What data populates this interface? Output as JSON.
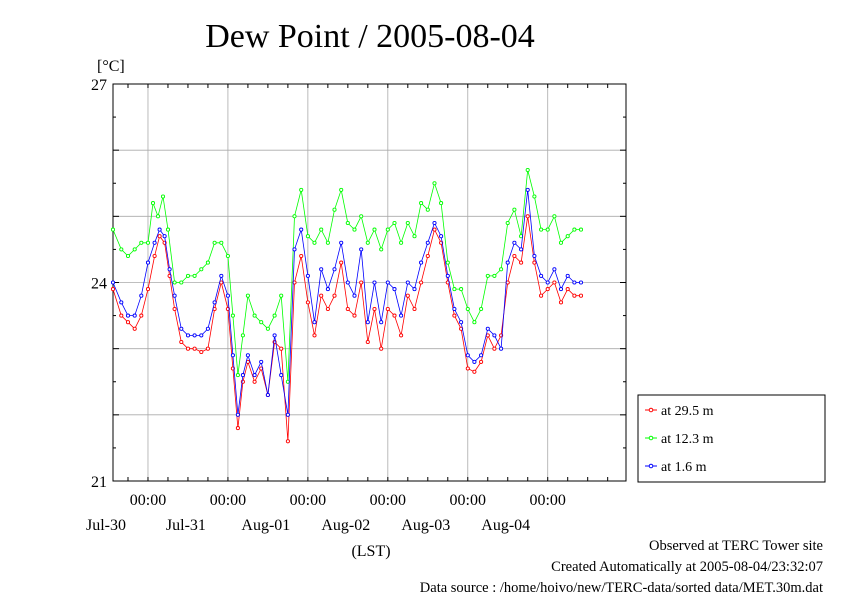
{
  "chart_data": {
    "type": "line",
    "title": "Dew Point / 2005-08-04",
    "ylabel": "[°C]",
    "xlabel": "(LST)",
    "ylim": [
      21,
      27
    ],
    "xlim": [
      "2005-07-29T13:30",
      "2005-08-04T23:30"
    ],
    "y_ticks": [
      {
        "value": 21,
        "label": "21"
      },
      {
        "value": 24,
        "label": "24"
      },
      {
        "value": 27,
        "label": "27"
      }
    ],
    "x_ticks": [
      {
        "time": "2005-07-30T00:00",
        "time_label": "00:00",
        "date_label": "Jul-30"
      },
      {
        "time": "2005-07-31T00:00",
        "time_label": "00:00",
        "date_label": "Jul-31"
      },
      {
        "time": "2005-08-01T00:00",
        "time_label": "00:00",
        "date_label": "Aug-01"
      },
      {
        "time": "2005-08-02T00:00",
        "time_label": "00:00",
        "date_label": "Aug-02"
      },
      {
        "time": "2005-08-03T00:00",
        "time_label": "00:00",
        "date_label": "Aug-03"
      },
      {
        "time": "2005-08-04T00:00",
        "time_label": "00:00",
        "date_label": "Aug-04"
      }
    ],
    "grid": true,
    "legend_position": "right",
    "series": [
      {
        "name": "at 29.5 m",
        "color": "#ff0000",
        "points": [
          [
            "2005-07-29T13:30",
            23.9
          ],
          [
            "2005-07-29T16:00",
            23.5
          ],
          [
            "2005-07-29T18:00",
            23.4
          ],
          [
            "2005-07-29T20:00",
            23.3
          ],
          [
            "2005-07-29T22:00",
            23.5
          ],
          [
            "2005-07-30T00:00",
            23.9
          ],
          [
            "2005-07-30T02:00",
            24.4
          ],
          [
            "2005-07-30T03:30",
            24.7
          ],
          [
            "2005-07-30T05:00",
            24.6
          ],
          [
            "2005-07-30T06:30",
            24.1
          ],
          [
            "2005-07-30T08:00",
            23.6
          ],
          [
            "2005-07-30T10:00",
            23.1
          ],
          [
            "2005-07-30T12:00",
            23.0
          ],
          [
            "2005-07-30T14:00",
            23.0
          ],
          [
            "2005-07-30T16:00",
            22.95
          ],
          [
            "2005-07-30T18:00",
            23.0
          ],
          [
            "2005-07-30T20:00",
            23.6
          ],
          [
            "2005-07-30T22:00",
            24.0
          ],
          [
            "2005-07-31T00:00",
            23.6
          ],
          [
            "2005-07-31T01:30",
            22.7
          ],
          [
            "2005-07-31T03:00",
            21.8
          ],
          [
            "2005-07-31T04:30",
            22.5
          ],
          [
            "2005-07-31T06:00",
            22.8
          ],
          [
            "2005-07-31T08:00",
            22.5
          ],
          [
            "2005-07-31T10:00",
            22.7
          ],
          [
            "2005-07-31T12:00",
            22.3
          ],
          [
            "2005-07-31T14:00",
            23.1
          ],
          [
            "2005-07-31T16:00",
            23.0
          ],
          [
            "2005-07-31T18:00",
            21.6
          ],
          [
            "2005-07-31T20:00",
            24.0
          ],
          [
            "2005-07-31T22:00",
            24.4
          ],
          [
            "2005-08-01T00:00",
            23.7
          ],
          [
            "2005-08-01T02:00",
            23.2
          ],
          [
            "2005-08-01T04:00",
            23.8
          ],
          [
            "2005-08-01T06:00",
            23.6
          ],
          [
            "2005-08-01T08:00",
            23.8
          ],
          [
            "2005-08-01T10:00",
            24.3
          ],
          [
            "2005-08-01T12:00",
            23.6
          ],
          [
            "2005-08-01T14:00",
            23.5
          ],
          [
            "2005-08-01T16:00",
            24.0
          ],
          [
            "2005-08-01T18:00",
            23.1
          ],
          [
            "2005-08-01T20:00",
            23.6
          ],
          [
            "2005-08-01T22:00",
            23.0
          ],
          [
            "2005-08-02T00:00",
            23.6
          ],
          [
            "2005-08-02T02:00",
            23.5
          ],
          [
            "2005-08-02T04:00",
            23.2
          ],
          [
            "2005-08-02T06:00",
            23.8
          ],
          [
            "2005-08-02T08:00",
            23.6
          ],
          [
            "2005-08-02T10:00",
            24.0
          ],
          [
            "2005-08-02T12:00",
            24.4
          ],
          [
            "2005-08-02T14:00",
            24.8
          ],
          [
            "2005-08-02T16:00",
            24.6
          ],
          [
            "2005-08-02T18:00",
            24.0
          ],
          [
            "2005-08-02T20:00",
            23.5
          ],
          [
            "2005-08-02T22:00",
            23.3
          ],
          [
            "2005-08-03T00:00",
            22.7
          ],
          [
            "2005-08-03T02:00",
            22.65
          ],
          [
            "2005-08-03T04:00",
            22.8
          ],
          [
            "2005-08-03T06:00",
            23.2
          ],
          [
            "2005-08-03T08:00",
            23.0
          ],
          [
            "2005-08-03T10:00",
            23.2
          ],
          [
            "2005-08-03T12:00",
            24.0
          ],
          [
            "2005-08-03T14:00",
            24.4
          ],
          [
            "2005-08-03T16:00",
            24.3
          ],
          [
            "2005-08-03T18:00",
            25.0
          ],
          [
            "2005-08-03T20:00",
            24.3
          ],
          [
            "2005-08-03T22:00",
            23.8
          ],
          [
            "2005-08-04T00:00",
            23.9
          ],
          [
            "2005-08-04T02:00",
            24.0
          ],
          [
            "2005-08-04T04:00",
            23.7
          ],
          [
            "2005-08-04T06:00",
            23.9
          ],
          [
            "2005-08-04T08:00",
            23.8
          ],
          [
            "2005-08-04T10:00",
            23.8
          ]
        ]
      },
      {
        "name": "at 12.3 m",
        "color": "#00ff00",
        "points": [
          [
            "2005-07-29T13:30",
            24.8
          ],
          [
            "2005-07-29T16:00",
            24.5
          ],
          [
            "2005-07-29T18:00",
            24.4
          ],
          [
            "2005-07-29T20:00",
            24.5
          ],
          [
            "2005-07-29T22:00",
            24.6
          ],
          [
            "2005-07-30T00:00",
            24.6
          ],
          [
            "2005-07-30T01:30",
            25.2
          ],
          [
            "2005-07-30T03:00",
            25.0
          ],
          [
            "2005-07-30T04:30",
            25.3
          ],
          [
            "2005-07-30T06:00",
            24.8
          ],
          [
            "2005-07-30T08:00",
            24.0
          ],
          [
            "2005-07-30T10:00",
            24.0
          ],
          [
            "2005-07-30T12:00",
            24.1
          ],
          [
            "2005-07-30T14:00",
            24.1
          ],
          [
            "2005-07-30T16:00",
            24.2
          ],
          [
            "2005-07-30T18:00",
            24.3
          ],
          [
            "2005-07-30T20:00",
            24.6
          ],
          [
            "2005-07-30T22:00",
            24.6
          ],
          [
            "2005-07-31T00:00",
            24.4
          ],
          [
            "2005-07-31T01:30",
            23.5
          ],
          [
            "2005-07-31T03:00",
            22.6
          ],
          [
            "2005-07-31T04:30",
            23.2
          ],
          [
            "2005-07-31T06:00",
            23.8
          ],
          [
            "2005-07-31T08:00",
            23.5
          ],
          [
            "2005-07-31T10:00",
            23.4
          ],
          [
            "2005-07-31T12:00",
            23.3
          ],
          [
            "2005-07-31T14:00",
            23.5
          ],
          [
            "2005-07-31T16:00",
            23.8
          ],
          [
            "2005-07-31T18:00",
            22.5
          ],
          [
            "2005-07-31T20:00",
            25.0
          ],
          [
            "2005-07-31T22:00",
            25.4
          ],
          [
            "2005-08-01T00:00",
            24.7
          ],
          [
            "2005-08-01T02:00",
            24.6
          ],
          [
            "2005-08-01T04:00",
            24.8
          ],
          [
            "2005-08-01T06:00",
            24.6
          ],
          [
            "2005-08-01T08:00",
            25.1
          ],
          [
            "2005-08-01T10:00",
            25.4
          ],
          [
            "2005-08-01T12:00",
            24.9
          ],
          [
            "2005-08-01T14:00",
            24.8
          ],
          [
            "2005-08-01T16:00",
            25.0
          ],
          [
            "2005-08-01T18:00",
            24.6
          ],
          [
            "2005-08-01T20:00",
            24.8
          ],
          [
            "2005-08-01T22:00",
            24.5
          ],
          [
            "2005-08-02T00:00",
            24.8
          ],
          [
            "2005-08-02T02:00",
            24.9
          ],
          [
            "2005-08-02T04:00",
            24.6
          ],
          [
            "2005-08-02T06:00",
            24.9
          ],
          [
            "2005-08-02T08:00",
            24.7
          ],
          [
            "2005-08-02T10:00",
            25.2
          ],
          [
            "2005-08-02T12:00",
            25.1
          ],
          [
            "2005-08-02T14:00",
            25.5
          ],
          [
            "2005-08-02T16:00",
            25.2
          ],
          [
            "2005-08-02T18:00",
            24.3
          ],
          [
            "2005-08-02T20:00",
            23.9
          ],
          [
            "2005-08-02T22:00",
            23.9
          ],
          [
            "2005-08-03T00:00",
            23.6
          ],
          [
            "2005-08-03T02:00",
            23.4
          ],
          [
            "2005-08-03T04:00",
            23.6
          ],
          [
            "2005-08-03T06:00",
            24.1
          ],
          [
            "2005-08-03T08:00",
            24.1
          ],
          [
            "2005-08-03T10:00",
            24.2
          ],
          [
            "2005-08-03T12:00",
            24.9
          ],
          [
            "2005-08-03T14:00",
            25.1
          ],
          [
            "2005-08-03T16:00",
            24.7
          ],
          [
            "2005-08-03T18:00",
            25.7
          ],
          [
            "2005-08-03T20:00",
            25.3
          ],
          [
            "2005-08-03T22:00",
            24.8
          ],
          [
            "2005-08-04T00:00",
            24.8
          ],
          [
            "2005-08-04T02:00",
            25.0
          ],
          [
            "2005-08-04T04:00",
            24.6
          ],
          [
            "2005-08-04T06:00",
            24.7
          ],
          [
            "2005-08-04T08:00",
            24.8
          ],
          [
            "2005-08-04T10:00",
            24.8
          ]
        ]
      },
      {
        "name": "at 1.6 m",
        "color": "#0000ff",
        "points": [
          [
            "2005-07-29T13:30",
            24.0
          ],
          [
            "2005-07-29T16:00",
            23.7
          ],
          [
            "2005-07-29T18:00",
            23.5
          ],
          [
            "2005-07-29T20:00",
            23.5
          ],
          [
            "2005-07-29T22:00",
            23.8
          ],
          [
            "2005-07-30T00:00",
            24.3
          ],
          [
            "2005-07-30T02:00",
            24.6
          ],
          [
            "2005-07-30T03:30",
            24.8
          ],
          [
            "2005-07-30T05:00",
            24.7
          ],
          [
            "2005-07-30T06:30",
            24.2
          ],
          [
            "2005-07-30T08:00",
            23.8
          ],
          [
            "2005-07-30T10:00",
            23.3
          ],
          [
            "2005-07-30T12:00",
            23.2
          ],
          [
            "2005-07-30T14:00",
            23.2
          ],
          [
            "2005-07-30T16:00",
            23.2
          ],
          [
            "2005-07-30T18:00",
            23.3
          ],
          [
            "2005-07-30T20:00",
            23.7
          ],
          [
            "2005-07-30T22:00",
            24.1
          ],
          [
            "2005-07-31T00:00",
            23.8
          ],
          [
            "2005-07-31T01:30",
            22.9
          ],
          [
            "2005-07-31T03:00",
            22.0
          ],
          [
            "2005-07-31T04:30",
            22.6
          ],
          [
            "2005-07-31T06:00",
            22.9
          ],
          [
            "2005-07-31T08:00",
            22.6
          ],
          [
            "2005-07-31T10:00",
            22.8
          ],
          [
            "2005-07-31T12:00",
            22.3
          ],
          [
            "2005-07-31T14:00",
            23.2
          ],
          [
            "2005-07-31T16:00",
            22.6
          ],
          [
            "2005-07-31T18:00",
            22.0
          ],
          [
            "2005-07-31T20:00",
            24.5
          ],
          [
            "2005-07-31T22:00",
            24.8
          ],
          [
            "2005-08-01T00:00",
            24.1
          ],
          [
            "2005-08-01T02:00",
            23.4
          ],
          [
            "2005-08-01T04:00",
            24.2
          ],
          [
            "2005-08-01T06:00",
            23.9
          ],
          [
            "2005-08-01T08:00",
            24.2
          ],
          [
            "2005-08-01T10:00",
            24.6
          ],
          [
            "2005-08-01T12:00",
            24.0
          ],
          [
            "2005-08-01T14:00",
            23.8
          ],
          [
            "2005-08-01T16:00",
            24.5
          ],
          [
            "2005-08-01T18:00",
            23.4
          ],
          [
            "2005-08-01T20:00",
            24.0
          ],
          [
            "2005-08-01T22:00",
            23.4
          ],
          [
            "2005-08-02T00:00",
            24.0
          ],
          [
            "2005-08-02T02:00",
            23.9
          ],
          [
            "2005-08-02T04:00",
            23.5
          ],
          [
            "2005-08-02T06:00",
            24.0
          ],
          [
            "2005-08-02T08:00",
            23.9
          ],
          [
            "2005-08-02T10:00",
            24.3
          ],
          [
            "2005-08-02T12:00",
            24.6
          ],
          [
            "2005-08-02T14:00",
            24.9
          ],
          [
            "2005-08-02T16:00",
            24.7
          ],
          [
            "2005-08-02T18:00",
            24.1
          ],
          [
            "2005-08-02T20:00",
            23.6
          ],
          [
            "2005-08-02T22:00",
            23.4
          ],
          [
            "2005-08-03T00:00",
            22.9
          ],
          [
            "2005-08-03T02:00",
            22.8
          ],
          [
            "2005-08-03T04:00",
            22.9
          ],
          [
            "2005-08-03T06:00",
            23.3
          ],
          [
            "2005-08-03T08:00",
            23.2
          ],
          [
            "2005-08-03T10:00",
            23.0
          ],
          [
            "2005-08-03T12:00",
            24.3
          ],
          [
            "2005-08-03T14:00",
            24.6
          ],
          [
            "2005-08-03T16:00",
            24.5
          ],
          [
            "2005-08-03T18:00",
            25.4
          ],
          [
            "2005-08-03T20:00",
            24.4
          ],
          [
            "2005-08-03T22:00",
            24.1
          ],
          [
            "2005-08-04T00:00",
            24.0
          ],
          [
            "2005-08-04T02:00",
            24.2
          ],
          [
            "2005-08-04T04:00",
            23.9
          ],
          [
            "2005-08-04T06:00",
            24.1
          ],
          [
            "2005-08-04T08:00",
            24.0
          ],
          [
            "2005-08-04T10:00",
            24.0
          ]
        ]
      }
    ],
    "annotations": [
      "Observed at TERC Tower site",
      "Created Automatically at 2005-08-04/23:32:07",
      "Data source : /home/hoivo/new/TERC-data/sorted  data/MET.30m.dat"
    ]
  }
}
